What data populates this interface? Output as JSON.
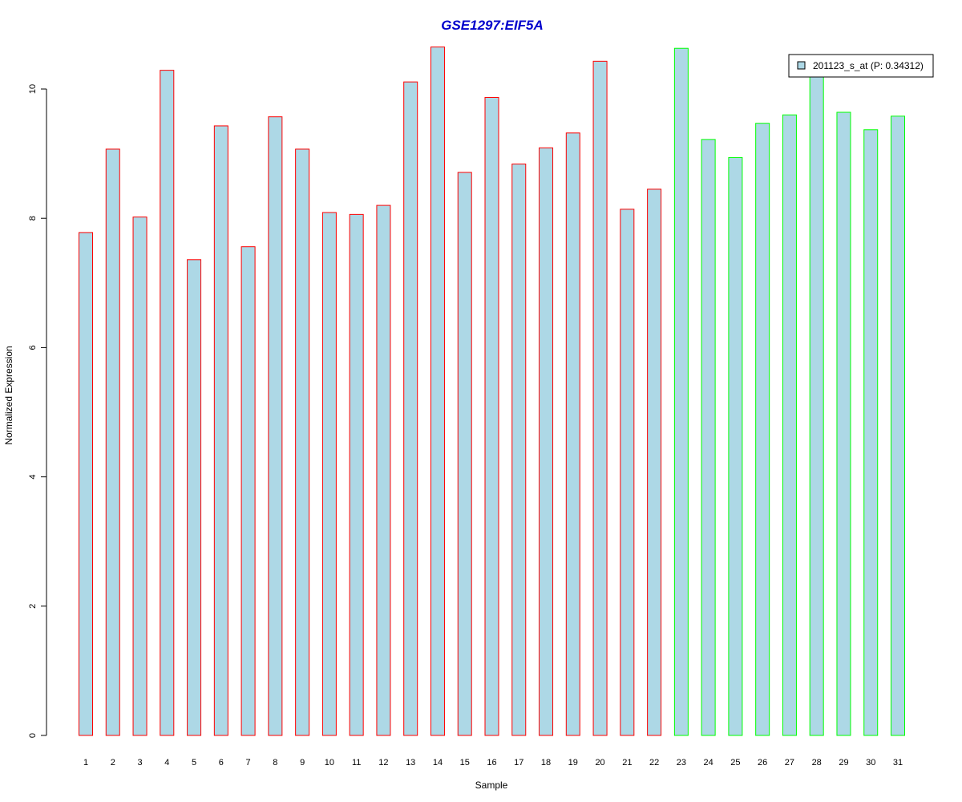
{
  "chart_data": {
    "type": "bar",
    "title": "GSE1297:EIF5A",
    "xlabel": "Sample",
    "ylabel": "Normalized Expression",
    "ylim": [
      0,
      10.8
    ],
    "yticks": [
      0,
      2,
      4,
      6,
      8,
      10
    ],
    "grid": false,
    "legend_position": "top-right",
    "categories": [
      "1",
      "2",
      "3",
      "4",
      "5",
      "6",
      "7",
      "8",
      "9",
      "10",
      "11",
      "12",
      "13",
      "14",
      "15",
      "16",
      "17",
      "18",
      "19",
      "20",
      "21",
      "22",
      "23",
      "24",
      "25",
      "26",
      "27",
      "28",
      "29",
      "30",
      "31"
    ],
    "series": [
      {
        "name": "201123_s_at (P: 0.34312)",
        "fill": "#add8e6",
        "values": [
          7.78,
          9.07,
          8.02,
          10.29,
          7.36,
          9.43,
          7.56,
          9.57,
          9.07,
          8.09,
          8.06,
          8.2,
          10.11,
          10.65,
          8.71,
          9.87,
          8.84,
          9.09,
          9.32,
          10.43,
          8.14,
          8.45,
          10.63,
          9.22,
          8.94,
          9.47,
          9.6,
          10.35,
          9.64,
          9.37,
          9.58
        ]
      }
    ],
    "bar_groups": [
      {
        "color": "#ff0000",
        "count": 22
      },
      {
        "color": "#00ff00",
        "count": 9
      }
    ],
    "colors": {
      "title": "#0000cc",
      "bar_fill": "#add8e6",
      "axis": "#000000"
    }
  }
}
